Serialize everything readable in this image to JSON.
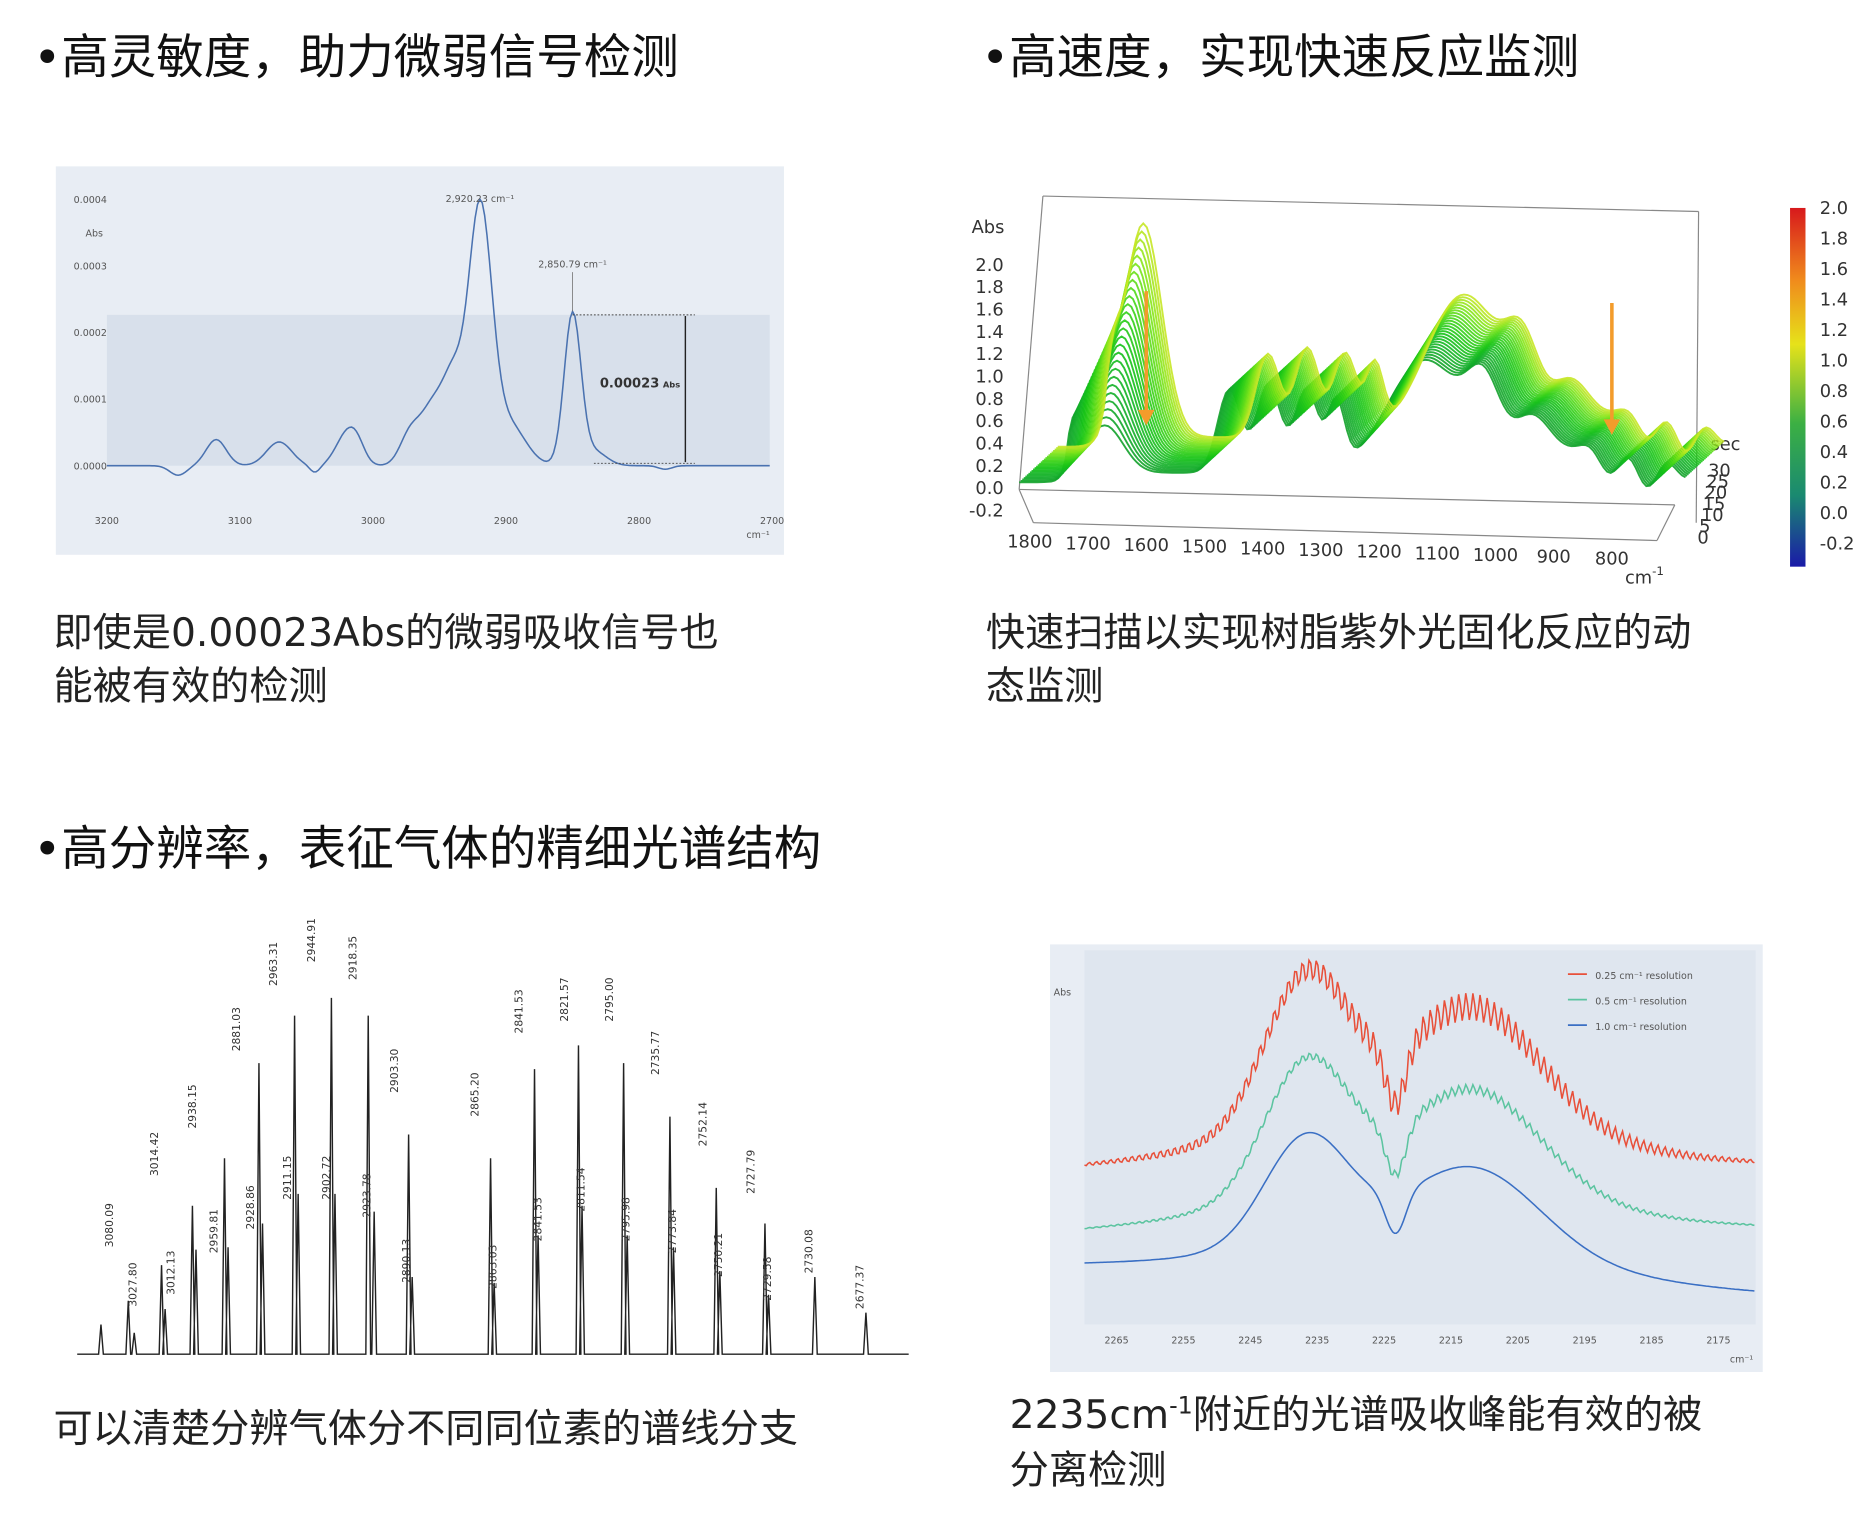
{
  "headings": [
    "•高灵敏度，助力微弱信号检测",
    "•高速度，实现快速反应监测",
    "•高分辨率，表征气体的精细光谱结构"
  ],
  "panels": [
    {
      "figure": {
        "y_label": "Abs",
        "y_ticks": [
          "0.0004",
          "0.0003",
          "0.0002",
          "0.0001",
          "0.0000"
        ],
        "x_ticks": [
          "3200",
          "3100",
          "3000",
          "2900",
          "2800",
          "2700"
        ],
        "x_unit": "cm⁻¹",
        "peak_labels": [
          "2,920.23 cm⁻¹",
          "2,850.79 cm⁻¹"
        ],
        "height_value": "0.00023",
        "height_unit": "Abs"
      },
      "caption": [
        "即使是0.00023Abs的微弱吸收信号也",
        "能被有效的检测"
      ]
    },
    {
      "figure": {
        "y_label": "Abs",
        "y_ticks": [
          "2.0",
          "1.8",
          "1.6",
          "1.4",
          "1.2",
          "1.0",
          "0.8",
          "0.6",
          "0.4",
          "0.2",
          "0.0",
          "-0.2"
        ],
        "x_ticks": [
          "1800",
          "1700",
          "1600",
          "1500",
          "1400",
          "1300",
          "1200",
          "1100",
          "1000",
          "900",
          "800"
        ],
        "x_unit": "cm",
        "x_unit_exp": "-1",
        "z_label": "sec",
        "z_ticks": [
          "30",
          "25",
          "20",
          "15",
          "10",
          "5",
          "0"
        ],
        "colorbar_ticks": [
          "2.0",
          "1.8",
          "1.6",
          "1.4",
          "1.2",
          "1.0",
          "0.8",
          "0.6",
          "0.4",
          "0.2",
          "0.0",
          "-0.2"
        ]
      },
      "caption": [
        "快速扫描以实现树脂紫外光固化反应的动",
        "态监测"
      ]
    },
    {
      "figure": {
        "peak_labels": [
          "3080.09",
          "3027.80",
          "3014.42",
          "3012.13",
          "2938.15",
          "2959.81",
          "2881.03",
          "2928.86",
          "2963.31",
          "2911.15",
          "2944.91",
          "2902.72",
          "2918.35",
          "2923.78",
          "2903.30",
          "2890.13",
          "2865.20",
          "2863.03",
          "2841.53",
          "2841.53",
          "2821.57",
          "2811.54",
          "2795.00",
          "2795.98",
          "2735.77",
          "2773.84",
          "2752.14",
          "2750.21",
          "2727.79",
          "2729.58",
          "2730.08",
          "2677.37"
        ]
      },
      "caption": [
        "可以清楚分辨气体分不同同位素的谱线分支"
      ]
    },
    {
      "figure": {
        "y_label": "Abs",
        "x_ticks": [
          "2265",
          "2255",
          "2245",
          "2235",
          "2225",
          "2215",
          "2205",
          "2195",
          "2185",
          "2175"
        ],
        "x_unit": "cm⁻¹",
        "legend": [
          "0.25 cm⁻¹ resolution",
          "0.5 cm⁻¹ resolution",
          "1.0 cm⁻¹ resolution"
        ]
      },
      "caption_first": [
        "2235cm",
        "-1",
        "附近的光谱吸收峰能有效的被"
      ],
      "caption": [
        "分离检测"
      ]
    }
  ]
}
